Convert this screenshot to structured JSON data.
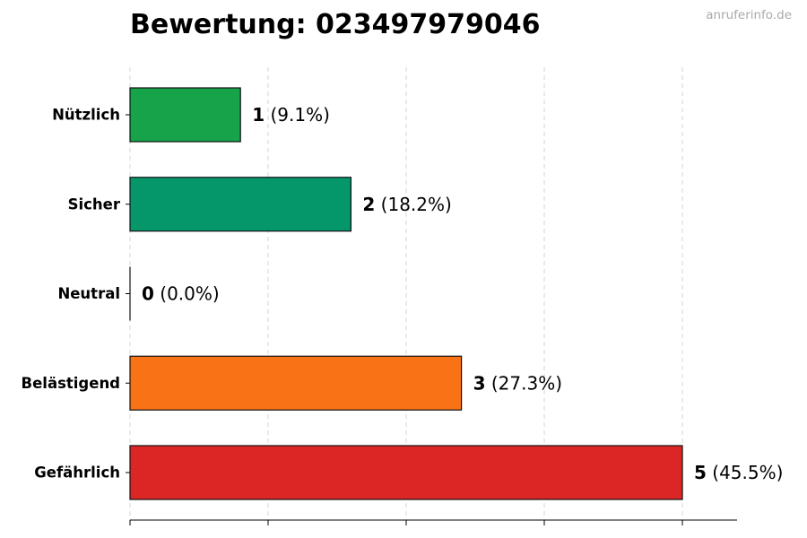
{
  "title": "Bewertung: 023497979046",
  "watermark": "anruferinfo.de",
  "chart_data": {
    "type": "bar",
    "orientation": "horizontal",
    "title": "Bewertung: 023497979046",
    "categories": [
      "Nützlich",
      "Sicher",
      "Neutral",
      "Belästigend",
      "Gefährlich"
    ],
    "values": [
      1,
      2,
      0,
      3,
      5
    ],
    "percent_labels": [
      "(9.1%)",
      "(18.2%)",
      "(0.0%)",
      "(27.3%)",
      "(45.5%)"
    ],
    "colors": [
      "#16a34a",
      "#059669",
      "#6b7280",
      "#f97316",
      "#dc2626"
    ],
    "xlim": [
      0,
      5.5
    ],
    "grid": "vertical dashed",
    "xlabel": "",
    "ylabel": ""
  }
}
